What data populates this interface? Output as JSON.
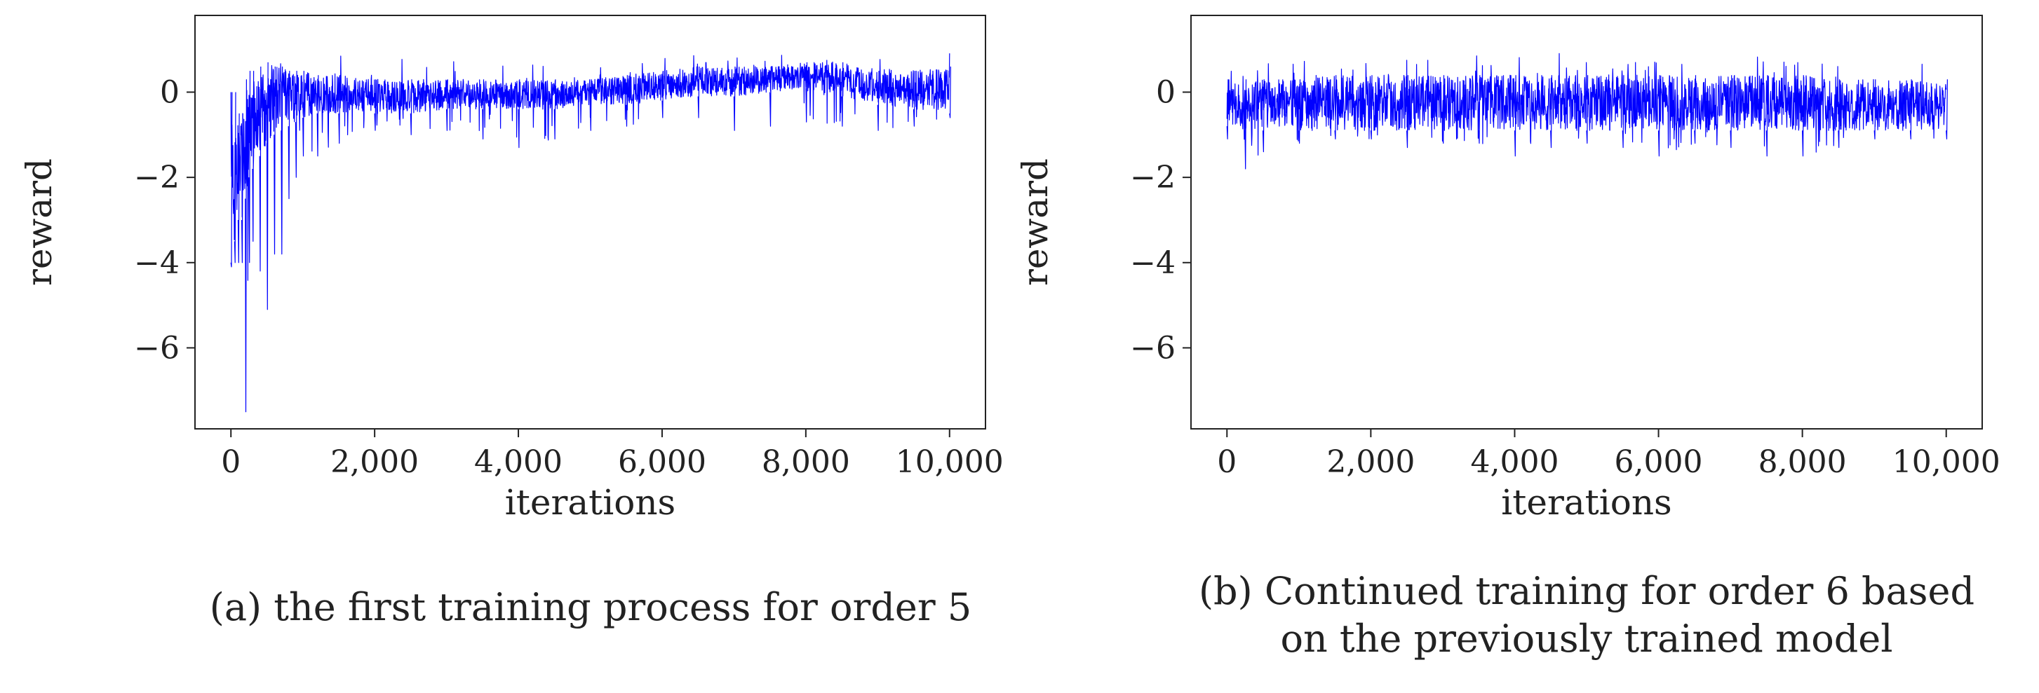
{
  "series_color": "#0000ff",
  "chart_data": [
    {
      "type": "line",
      "caption": [
        "(a) the first training process for order 5"
      ],
      "xlabel": "iterations",
      "ylabel": "reward",
      "xlim": [
        -500,
        10500
      ],
      "ylim": [
        -7.9,
        1.8
      ],
      "xticks": [
        0,
        2000,
        4000,
        6000,
        8000,
        10000
      ],
      "xtick_labels": [
        "0",
        "2,000",
        "4,000",
        "6,000",
        "8,000",
        "10,000"
      ],
      "yticks": [
        0,
        -2,
        -4,
        -6
      ],
      "ytick_labels": [
        "0",
        "−2",
        "−4",
        "−6"
      ],
      "grid": false,
      "series": [
        {
          "color": "#0000ff",
          "x": [
            0,
            50,
            100,
            150,
            200,
            250,
            300,
            400,
            500,
            600,
            700,
            800,
            900,
            1000,
            1200,
            1500,
            2000,
            2500,
            3000,
            3500,
            4000,
            4500,
            5000,
            5500,
            6000,
            6500,
            7000,
            7500,
            8000,
            8500,
            9000,
            9500,
            10000
          ],
          "y_max": [
            0,
            0.2,
            0.5,
            0.6,
            0.8,
            1.0,
            1.1,
            1.1,
            1.1,
            1.1,
            1.0,
            0.9,
            0.9,
            1.1,
            1.0,
            0.9,
            0.9,
            0.9,
            1.0,
            0.8,
            0.8,
            0.8,
            0.8,
            0.9,
            0.9,
            1.0,
            0.9,
            0.9,
            0.9,
            0.9,
            0.9,
            0.9,
            1.0
          ],
          "y_min": [
            -4.1,
            -4.0,
            -4.0,
            -4.0,
            -7.5,
            -4.0,
            -3.5,
            -4.2,
            -5.1,
            -3.8,
            -3.8,
            -2.5,
            -2.0,
            -1.5,
            -1.5,
            -1.2,
            -0.9,
            -1.0,
            -0.9,
            -1.1,
            -1.3,
            -1.1,
            -0.9,
            -0.8,
            -0.6,
            -0.6,
            -0.9,
            -0.8,
            -0.7,
            -0.8,
            -0.9,
            -0.8,
            -0.6
          ],
          "band_high": [
            0,
            0,
            -0.5,
            -0.5,
            0.3,
            0.5,
            0.5,
            0.6,
            0.7,
            0.6,
            0.6,
            0.5,
            0.5,
            0.5,
            0.4,
            0.4,
            0.3,
            0.3,
            0.3,
            0.3,
            0.3,
            0.3,
            0.3,
            0.4,
            0.5,
            0.6,
            0.6,
            0.6,
            0.7,
            0.7,
            0.5,
            0.5,
            0.6
          ],
          "band_low": [
            -4.0,
            -3.5,
            -3.0,
            -3.0,
            -2.5,
            -2.0,
            -1.8,
            -1.5,
            -1.2,
            -1.0,
            -0.9,
            -0.8,
            -0.7,
            -0.6,
            -0.5,
            -0.5,
            -0.5,
            -0.5,
            -0.4,
            -0.4,
            -0.4,
            -0.4,
            -0.3,
            -0.3,
            -0.2,
            -0.1,
            -0.1,
            0.0,
            0.1,
            -0.1,
            -0.3,
            -0.4,
            -0.5
          ]
        }
      ]
    },
    {
      "type": "line",
      "caption": [
        "(b) Continued training for order 6 based",
        "on the previously trained model"
      ],
      "xlabel": "iterations",
      "ylabel": "reward",
      "xlim": [
        -500,
        10500
      ],
      "ylim": [
        -7.9,
        1.8
      ],
      "xticks": [
        0,
        2000,
        4000,
        6000,
        8000,
        10000
      ],
      "xtick_labels": [
        "0",
        "2,000",
        "4,000",
        "6,000",
        "8,000",
        "10,000"
      ],
      "yticks": [
        0,
        -2,
        -4,
        -6
      ],
      "ytick_labels": [
        "0",
        "−2",
        "−4",
        "−6"
      ],
      "grid": false,
      "series": [
        {
          "color": "#0000ff",
          "x": [
            0,
            250,
            500,
            1000,
            1500,
            2000,
            2500,
            3000,
            3500,
            4000,
            4500,
            5000,
            5500,
            6000,
            6500,
            7000,
            7500,
            8000,
            8500,
            9000,
            9500,
            10000
          ],
          "y_max": [
            0.6,
            0.7,
            0.7,
            0.8,
            0.8,
            0.8,
            0.9,
            1.0,
            0.9,
            0.9,
            1.1,
            0.9,
            0.9,
            0.9,
            0.9,
            0.9,
            1.0,
            0.8,
            0.8,
            0.8,
            0.8,
            0.6
          ],
          "y_min": [
            -1.1,
            -1.8,
            -1.4,
            -1.2,
            -1.1,
            -1.1,
            -1.3,
            -1.2,
            -1.2,
            -1.5,
            -1.3,
            -1.2,
            -1.3,
            -1.5,
            -1.2,
            -1.3,
            -1.5,
            -1.5,
            -1.3,
            -1.1,
            -1.1,
            -1.1
          ],
          "band_high": [
            0.3,
            0.3,
            0.3,
            0.3,
            0.4,
            0.4,
            0.4,
            0.4,
            0.4,
            0.4,
            0.4,
            0.4,
            0.4,
            0.4,
            0.4,
            0.4,
            0.4,
            0.4,
            0.3,
            0.3,
            0.3,
            0.3
          ],
          "band_low": [
            -0.8,
            -0.9,
            -0.9,
            -0.9,
            -0.9,
            -0.9,
            -0.9,
            -0.9,
            -0.9,
            -0.9,
            -0.9,
            -0.9,
            -0.9,
            -0.9,
            -0.9,
            -0.9,
            -0.9,
            -0.9,
            -0.9,
            -0.9,
            -0.9,
            -0.9
          ]
        }
      ]
    }
  ]
}
